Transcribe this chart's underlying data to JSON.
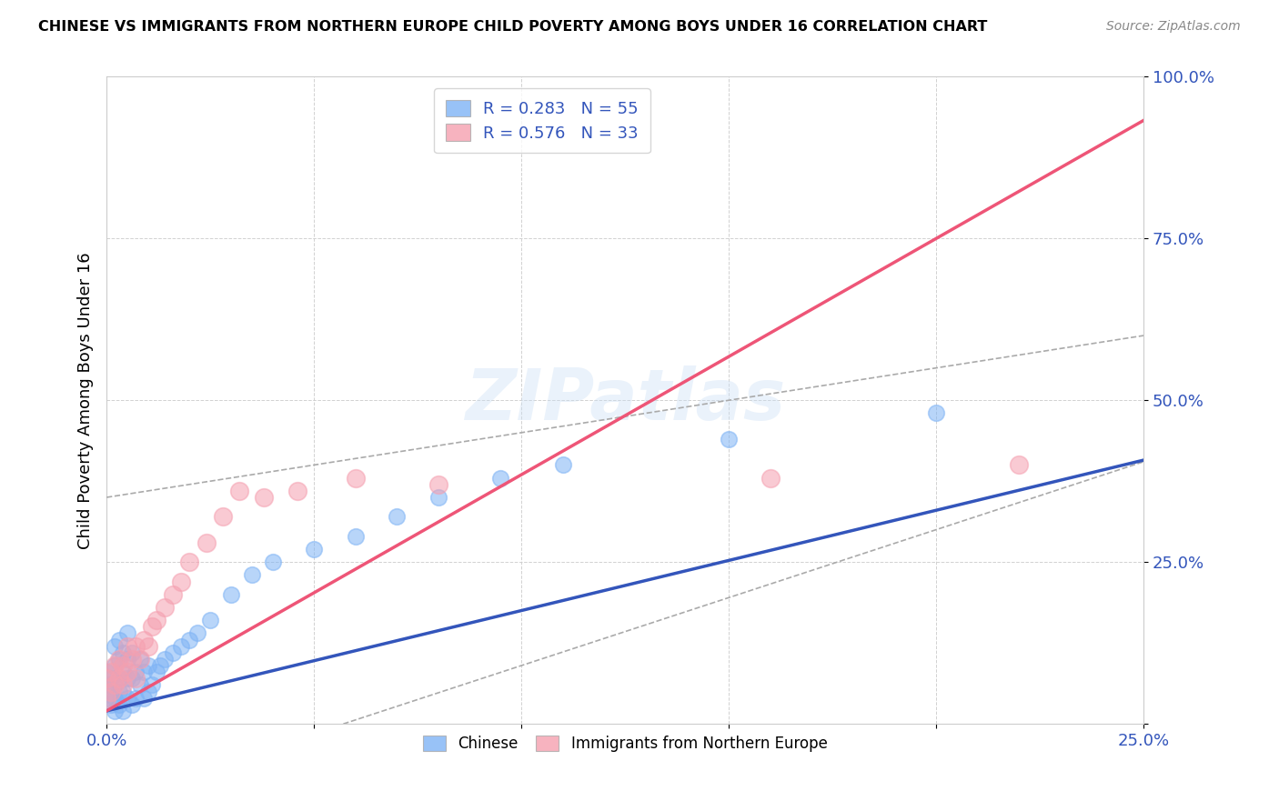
{
  "title": "CHINESE VS IMMIGRANTS FROM NORTHERN EUROPE CHILD POVERTY AMONG BOYS UNDER 16 CORRELATION CHART",
  "source": "Source: ZipAtlas.com",
  "xlabel": "",
  "ylabel": "Child Poverty Among Boys Under 16",
  "xlim": [
    0.0,
    0.25
  ],
  "ylim": [
    0.0,
    1.0
  ],
  "xtick_vals": [
    0.0,
    0.05,
    0.1,
    0.15,
    0.2,
    0.25
  ],
  "xtick_labels": [
    "0.0%",
    "",
    "",
    "",
    "",
    "25.0%"
  ],
  "ytick_vals": [
    0.0,
    0.25,
    0.5,
    0.75,
    1.0
  ],
  "ytick_labels": [
    "",
    "25.0%",
    "50.0%",
    "75.0%",
    "100.0%"
  ],
  "watermark": "ZIPatlas",
  "legend1_label": "R = 0.283   N = 55",
  "legend2_label": "R = 0.576   N = 33",
  "legend1_color": "#7eb3f5",
  "legend2_color": "#f5a0b0",
  "trendline1_color": "#3355bb",
  "trendline2_color": "#ee5577",
  "ci_color": "#aaaaaa",
  "background_color": "#ffffff",
  "grid_color": "#cccccc",
  "trendline1_intercept": 0.02,
  "trendline1_slope": 1.55,
  "trendline2_intercept": 0.02,
  "trendline2_slope": 3.65,
  "ci1_upper_intercept": 0.35,
  "ci1_upper_slope": 1.0,
  "ci1_lower_intercept": -0.12,
  "ci1_lower_slope": 2.1,
  "chinese_x": [
    0.0,
    0.0,
    0.0,
    0.001,
    0.001,
    0.001,
    0.002,
    0.002,
    0.002,
    0.002,
    0.002,
    0.003,
    0.003,
    0.003,
    0.003,
    0.003,
    0.004,
    0.004,
    0.004,
    0.004,
    0.005,
    0.005,
    0.005,
    0.005,
    0.006,
    0.006,
    0.006,
    0.007,
    0.007,
    0.008,
    0.008,
    0.009,
    0.009,
    0.01,
    0.01,
    0.011,
    0.012,
    0.013,
    0.014,
    0.016,
    0.018,
    0.02,
    0.022,
    0.025,
    0.03,
    0.035,
    0.04,
    0.05,
    0.06,
    0.07,
    0.08,
    0.095,
    0.11,
    0.15,
    0.2
  ],
  "chinese_y": [
    0.04,
    0.06,
    0.08,
    0.03,
    0.05,
    0.07,
    0.02,
    0.04,
    0.06,
    0.09,
    0.12,
    0.03,
    0.05,
    0.07,
    0.1,
    0.13,
    0.02,
    0.05,
    0.08,
    0.11,
    0.04,
    0.07,
    0.1,
    0.14,
    0.03,
    0.07,
    0.11,
    0.04,
    0.08,
    0.06,
    0.1,
    0.04,
    0.08,
    0.05,
    0.09,
    0.06,
    0.08,
    0.09,
    0.1,
    0.11,
    0.12,
    0.13,
    0.14,
    0.16,
    0.2,
    0.23,
    0.25,
    0.27,
    0.29,
    0.32,
    0.35,
    0.38,
    0.4,
    0.44,
    0.48
  ],
  "northern_europe_x": [
    0.0,
    0.0,
    0.001,
    0.001,
    0.002,
    0.002,
    0.003,
    0.003,
    0.004,
    0.004,
    0.005,
    0.005,
    0.006,
    0.007,
    0.007,
    0.008,
    0.009,
    0.01,
    0.011,
    0.012,
    0.014,
    0.016,
    0.018,
    0.02,
    0.024,
    0.028,
    0.032,
    0.038,
    0.046,
    0.06,
    0.08,
    0.16,
    0.22
  ],
  "northern_europe_y": [
    0.04,
    0.07,
    0.05,
    0.08,
    0.06,
    0.09,
    0.07,
    0.1,
    0.06,
    0.09,
    0.08,
    0.12,
    0.1,
    0.07,
    0.12,
    0.1,
    0.13,
    0.12,
    0.15,
    0.16,
    0.18,
    0.2,
    0.22,
    0.25,
    0.28,
    0.32,
    0.36,
    0.35,
    0.36,
    0.38,
    0.37,
    0.38,
    0.4
  ]
}
